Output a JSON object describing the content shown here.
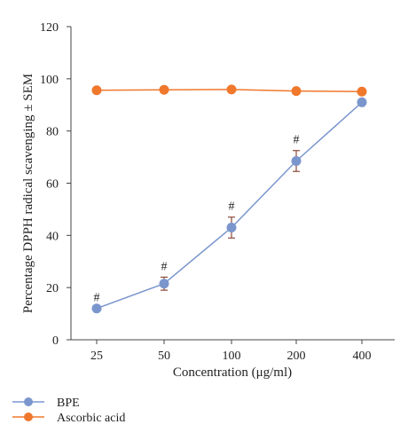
{
  "chart_data": {
    "type": "line",
    "title": "",
    "xlabel": "Concentration (μg/ml)",
    "ylabel": "Percentage DPPH radical scavenging ± SEM",
    "categories": [
      "25",
      "50",
      "100",
      "200",
      "400"
    ],
    "ylim": [
      0,
      120
    ],
    "yticks": [
      0,
      20,
      40,
      60,
      80,
      100,
      120
    ],
    "grid": false,
    "legend_position": "bottom-left",
    "series": [
      {
        "name": "BPE",
        "color": "#7b96cd",
        "values": [
          12,
          21.5,
          43,
          68.5,
          91
        ],
        "errors": [
          null,
          2.5,
          4,
          4,
          null
        ],
        "annotations": [
          "#",
          "#",
          "#",
          "#",
          ""
        ]
      },
      {
        "name": "Ascorbic acid",
        "color": "#f0782d",
        "values": [
          95.6,
          95.8,
          95.9,
          95.3,
          95.1
        ],
        "errors": [
          null,
          null,
          null,
          null,
          null
        ],
        "annotations": [
          "",
          "",
          "",
          "",
          ""
        ]
      }
    ],
    "error_bar_color": "#8b4a3a"
  }
}
